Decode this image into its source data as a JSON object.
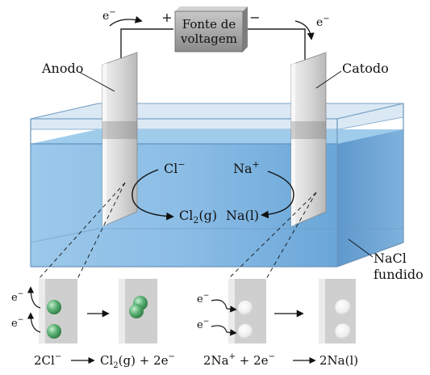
{
  "power_source": {
    "label_line1": "Fonte de",
    "label_line2": "voltagem",
    "plus": "+",
    "minus": "−"
  },
  "electron_left": {
    "base": "e",
    "sup": "−"
  },
  "electron_right": {
    "base": "e",
    "sup": "−"
  },
  "anode_label": "Anodo",
  "cathode_label": "Catodo",
  "melt_label_line1": "NaCl",
  "melt_label_line2": "fundido",
  "anode_reaction": {
    "ion_base": "Cl",
    "ion_sup": "−",
    "product_base": "Cl",
    "product_sub": "2",
    "product_state": "(g)"
  },
  "cathode_reaction": {
    "ion_base": "Na",
    "ion_sup": "+",
    "product_base": "Na",
    "product_state": "(l)"
  },
  "detail_anode_electrons": [
    {
      "base": "e",
      "sup": "−"
    },
    {
      "base": "e",
      "sup": "−"
    }
  ],
  "detail_cathode_electrons": [
    {
      "base": "e",
      "sup": "−"
    },
    {
      "base": "e",
      "sup": "−"
    }
  ],
  "equation_anode": {
    "lhs_coef": "2Cl",
    "lhs_sup": "−",
    "rhs_base": "Cl",
    "rhs_sub": "2",
    "rhs_state": "(g)",
    "rhs_plus": "+ 2e",
    "rhs_sup": "−"
  },
  "equation_cathode": {
    "lhs_base": "2Na",
    "lhs_sup": "+",
    "lhs_plus": "+ 2e",
    "lhs_sup2": "−",
    "rhs_base": "2Na",
    "rhs_state": "(l)"
  },
  "colors": {
    "liquid": "#7fb6e2",
    "liquid_dark": "#5f9bd0",
    "electrode": "#d8d8d8",
    "source_box": "#9a9a9a",
    "chlorine_sphere": "#4fa86b",
    "sodium_sphere": "#f2f2f2"
  }
}
